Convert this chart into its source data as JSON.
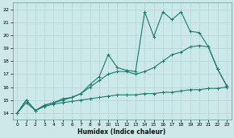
{
  "xlabel": "Humidex (Indice chaleur)",
  "bg_color": "#cce8e8",
  "line_color": "#1a7a6e",
  "grid_color": "#b0d4d4",
  "xlim": [
    -0.5,
    23.5
  ],
  "ylim": [
    13.5,
    22.5
  ],
  "xticks": [
    0,
    1,
    2,
    3,
    4,
    5,
    6,
    7,
    8,
    9,
    10,
    11,
    12,
    13,
    14,
    15,
    16,
    17,
    18,
    19,
    20,
    21,
    22,
    23
  ],
  "yticks": [
    14,
    15,
    16,
    17,
    18,
    19,
    20,
    21,
    22
  ],
  "line1_x": [
    0,
    1,
    2,
    3,
    4,
    5,
    6,
    7,
    8,
    9,
    10,
    11,
    12,
    13,
    14,
    15,
    16,
    17,
    18,
    19,
    20,
    21,
    22,
    23
  ],
  "line1_y": [
    14.0,
    15.0,
    14.2,
    14.6,
    14.8,
    15.1,
    15.2,
    15.5,
    16.2,
    16.8,
    18.5,
    17.5,
    17.3,
    17.2,
    21.8,
    19.9,
    21.8,
    21.2,
    21.8,
    20.3,
    20.2,
    19.1,
    17.4,
    16.1
  ],
  "line2_x": [
    0,
    1,
    2,
    3,
    4,
    5,
    6,
    7,
    8,
    9,
    10,
    11,
    12,
    13,
    14,
    15,
    16,
    17,
    18,
    19,
    20,
    21,
    22,
    23
  ],
  "line2_y": [
    14.0,
    15.0,
    14.2,
    14.6,
    14.8,
    15.0,
    15.2,
    15.5,
    16.0,
    16.5,
    17.0,
    17.2,
    17.2,
    17.0,
    17.2,
    17.5,
    18.0,
    18.5,
    18.7,
    19.1,
    19.2,
    19.1,
    17.4,
    16.1
  ],
  "line3_x": [
    0,
    1,
    2,
    3,
    4,
    5,
    6,
    7,
    8,
    9,
    10,
    11,
    12,
    13,
    14,
    15,
    16,
    17,
    18,
    19,
    20,
    21,
    22,
    23
  ],
  "line3_y": [
    14.0,
    14.8,
    14.2,
    14.5,
    14.7,
    14.8,
    14.9,
    15.0,
    15.1,
    15.2,
    15.3,
    15.4,
    15.4,
    15.4,
    15.5,
    15.5,
    15.6,
    15.6,
    15.7,
    15.8,
    15.8,
    15.9,
    15.9,
    16.0
  ]
}
